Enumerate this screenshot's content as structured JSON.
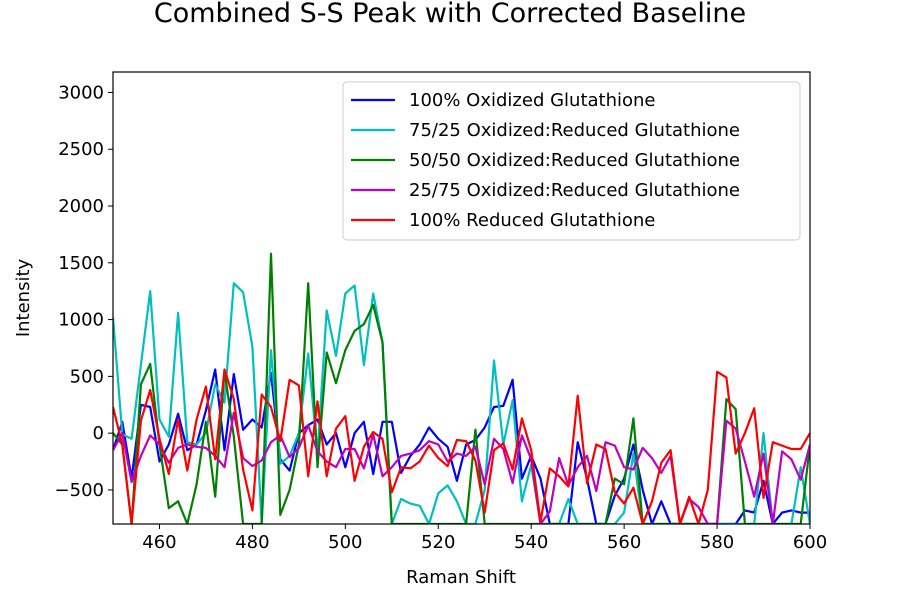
{
  "chart_data": {
    "type": "line",
    "title": "Combined S-S Peak with Corrected Baseline",
    "xlabel": "Raman Shift",
    "ylabel": "Intensity",
    "xlim": [
      450,
      600
    ],
    "ylim": [
      -800,
      3180
    ],
    "xticks": [
      "460",
      "480",
      "500",
      "520",
      "540",
      "560",
      "580",
      "600"
    ],
    "yticks": [
      "−500",
      "0",
      "500",
      "1000",
      "1500",
      "2000",
      "2500",
      "3000"
    ],
    "grid": false,
    "legend_position": "top-right",
    "x": [
      450,
      452,
      454,
      456,
      458,
      460,
      462,
      464,
      466,
      468,
      470,
      472,
      474,
      476,
      478,
      480,
      482,
      484,
      486,
      488,
      490,
      492,
      494,
      496,
      498,
      500,
      502,
      504,
      506,
      508,
      510,
      512,
      514,
      516,
      518,
      520,
      522,
      524,
      526,
      528,
      530,
      532,
      534,
      536,
      538,
      540,
      542,
      544,
      546,
      548,
      550,
      552,
      554,
      556,
      558,
      560,
      562,
      564,
      566,
      568,
      570,
      572,
      574,
      576,
      578,
      580,
      582,
      584,
      586,
      588,
      590,
      592,
      594,
      596,
      598,
      600
    ],
    "series": [
      {
        "name": "100% Oxidized Glutathione",
        "color": "#0000ff",
        "values": [
          -150,
          100,
          -400,
          250,
          230,
          -250,
          -100,
          170,
          -150,
          -100,
          200,
          560,
          -150,
          520,
          30,
          120,
          50,
          530,
          -230,
          -330,
          0,
          70,
          120,
          -100,
          0,
          -300,
          0,
          100,
          -360,
          100,
          100,
          -350,
          -200,
          -100,
          50,
          -50,
          -120,
          -420,
          -100,
          -60,
          50,
          230,
          240,
          470,
          -400,
          -200,
          -400,
          -800,
          -800,
          -800,
          -80,
          -400,
          -800,
          -800,
          -550,
          -400,
          -100,
          -500,
          -800,
          -600,
          -800,
          -800,
          -800,
          -800,
          -800,
          -800,
          -800,
          -800,
          -680,
          -700,
          -420,
          -800,
          -700,
          -680,
          -700,
          -700
        ]
      },
      {
        "name": "75/25 Oxidized:Reduced Glutathione",
        "color": "#00bfbf",
        "values": [
          1020,
          -10,
          -50,
          600,
          1250,
          120,
          -30,
          1060,
          -80,
          -100,
          0,
          430,
          270,
          1320,
          1240,
          760,
          -800,
          730,
          -270,
          -200,
          0,
          700,
          -180,
          1080,
          680,
          1230,
          1300,
          600,
          1230,
          800,
          -800,
          -580,
          -620,
          -640,
          -800,
          -530,
          -460,
          -600,
          -800,
          -800,
          -500,
          640,
          -100,
          290,
          -600,
          -280,
          -800,
          -800,
          -800,
          -580,
          -800,
          -800,
          -800,
          -800,
          -800,
          -700,
          -180,
          -800,
          -800,
          -800,
          -800,
          -800,
          -800,
          -800,
          -800,
          -800,
          -800,
          -800,
          -800,
          -800,
          0,
          -800,
          -800,
          -800,
          -300,
          -800
        ]
      },
      {
        "name": "50/50 Oxidized:Reduced Glutathione",
        "color": "#008000",
        "values": [
          0,
          -100,
          -800,
          430,
          610,
          -100,
          -660,
          -600,
          -800,
          -450,
          100,
          -560,
          550,
          -30,
          -800,
          -800,
          -800,
          1580,
          -720,
          -500,
          -100,
          1320,
          -300,
          710,
          440,
          730,
          900,
          960,
          1130,
          800,
          -800,
          -800,
          -800,
          -800,
          -800,
          -800,
          -800,
          -800,
          -800,
          30,
          -800,
          -800,
          -800,
          -800,
          -800,
          -800,
          -800,
          -800,
          -800,
          -800,
          -800,
          -800,
          -800,
          -800,
          -400,
          -450,
          130,
          -800,
          -800,
          -800,
          -800,
          -800,
          -800,
          -800,
          -800,
          -800,
          300,
          210,
          -800,
          -800,
          -800,
          -800,
          -800,
          -800,
          -800,
          -100
        ]
      },
      {
        "name": "25/75 Oxidized:Reduced Glutathione",
        "color": "#bf00bf",
        "values": [
          -150,
          0,
          -430,
          -200,
          -20,
          -100,
          -260,
          -130,
          -100,
          -120,
          -130,
          -200,
          -300,
          180,
          -220,
          -290,
          -240,
          -80,
          -20,
          -210,
          -130,
          70,
          -160,
          -250,
          -300,
          -140,
          -140,
          -310,
          -10,
          -380,
          -300,
          -200,
          -180,
          -150,
          -70,
          -100,
          -250,
          -180,
          -200,
          -120,
          -450,
          -50,
          -140,
          -440,
          -20,
          -230,
          -800,
          -690,
          -220,
          -460,
          -300,
          -200,
          -510,
          -80,
          -110,
          -300,
          -320,
          -130,
          -220,
          -350,
          -200,
          -800,
          -580,
          -650,
          -800,
          -800,
          110,
          40,
          -250,
          -560,
          -180,
          -800,
          -160,
          -230,
          -410,
          -100
        ]
      },
      {
        "name": "100% Reduced Glutathione",
        "color": "#ff0000",
        "values": [
          230,
          -100,
          -800,
          110,
          380,
          -50,
          -360,
          120,
          -330,
          120,
          410,
          -230,
          560,
          300,
          -320,
          -680,
          340,
          230,
          -70,
          470,
          420,
          -380,
          280,
          -380,
          40,
          150,
          -420,
          -120,
          10,
          -50,
          -520,
          -300,
          -310,
          -250,
          -110,
          -220,
          -290,
          -60,
          -70,
          -240,
          -700,
          -150,
          -90,
          -320,
          130,
          -150,
          -780,
          -310,
          -380,
          -470,
          330,
          -440,
          -100,
          -140,
          -520,
          -620,
          -480,
          -800,
          -600,
          -260,
          -150,
          -800,
          -560,
          -800,
          -500,
          540,
          490,
          -180,
          0,
          220,
          -570,
          -80,
          -110,
          -140,
          -140,
          0
        ]
      }
    ]
  }
}
